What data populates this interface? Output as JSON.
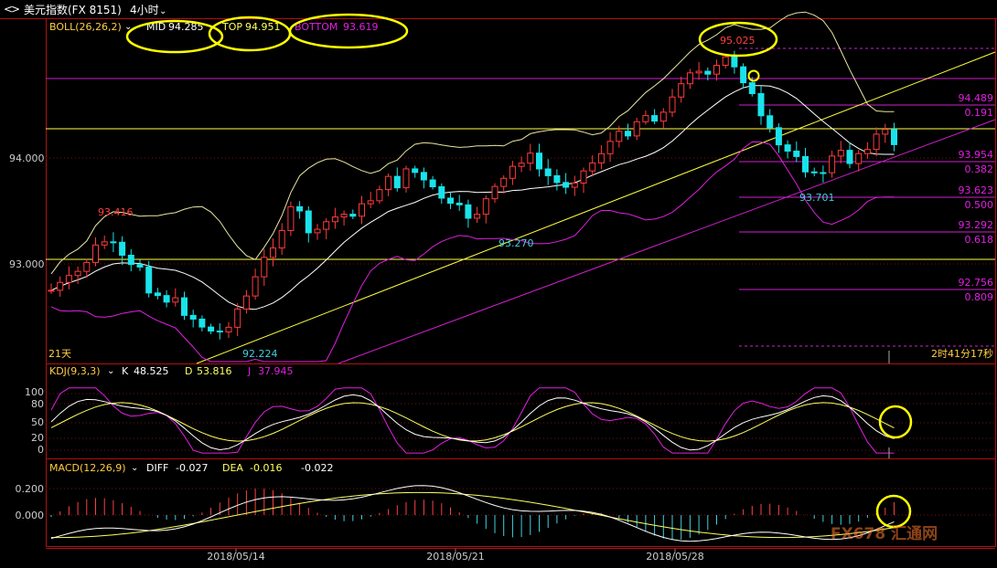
{
  "window": {
    "title": "美元指数(FX 8151)",
    "period": "4小时"
  },
  "boll": {
    "label": "BOLL(26,26,2)",
    "mid_label": "MID",
    "mid_value": "94.285",
    "top_label": "TOP",
    "top_value": "94.951",
    "bottom_label": "BOTTOM",
    "bottom_value": "93.619"
  },
  "kdj": {
    "label": "KDJ(9,3,3)",
    "k_label": "K",
    "k_value": "48.525",
    "d_label": "D",
    "d_value": "53.816",
    "j_label": "J",
    "j_value": "37.945"
  },
  "macd": {
    "label": "MACD(12,26,9)",
    "diff_label": "DIFF",
    "diff_value": "-0.027",
    "dea_label": "DEA",
    "dea_value": "-0.016",
    "macd_value": "-0.022"
  },
  "price_axis": [
    "94.000",
    "93.000"
  ],
  "kdj_axis": [
    "100",
    "80",
    "50",
    "20",
    "0"
  ],
  "macd_axis": [
    "0.200",
    "0.000"
  ],
  "date_axis": [
    "2018/05/14",
    "2018/05/21",
    "2018/05/28"
  ],
  "annotations": {
    "high_left": "93.416",
    "low_left": "92.224",
    "low_mid": "93.270",
    "high_peak": "95.025",
    "low_right": "93.701"
  },
  "fib_levels": [
    {
      "price": "94.489",
      "ratio": "0.191"
    },
    {
      "price": "93.954",
      "ratio": "0.382"
    },
    {
      "price": "93.623",
      "ratio": "0.500"
    },
    {
      "price": "93.292",
      "ratio": "0.618"
    },
    {
      "price": "92.756",
      "ratio": "0.809"
    }
  ],
  "footer": {
    "days_label": "21天",
    "countdown": "2时41分17秒"
  },
  "watermark": "FX678 汇通网",
  "colors": {
    "background": "#000000",
    "frame": "#b01010",
    "up_candle": "#ff3b3b",
    "down_candle": "#19e3ea",
    "boll_line": "#e8e6a0",
    "fib_line": "#d020d0",
    "trend_yellow": "#ffff40",
    "highlight_circle": "#ffff00",
    "macd_up_bar": "#ff4040",
    "macd_down_bar": "#3fd0e0"
  },
  "chart_data": {
    "type": "candlestick",
    "price_range": [
      92.1,
      95.3
    ],
    "candle_count": 96,
    "fib_high": 95.025,
    "fib_low": 92.224,
    "notable_points": [
      {
        "label": "93.416",
        "kind": "high"
      },
      {
        "label": "92.224",
        "kind": "low"
      },
      {
        "label": "93.270",
        "kind": "low"
      },
      {
        "label": "95.025",
        "kind": "high"
      },
      {
        "label": "93.701",
        "kind": "low"
      }
    ],
    "kdj_range": [
      0,
      100
    ],
    "macd_range": [
      -0.28,
      0.28
    ]
  }
}
